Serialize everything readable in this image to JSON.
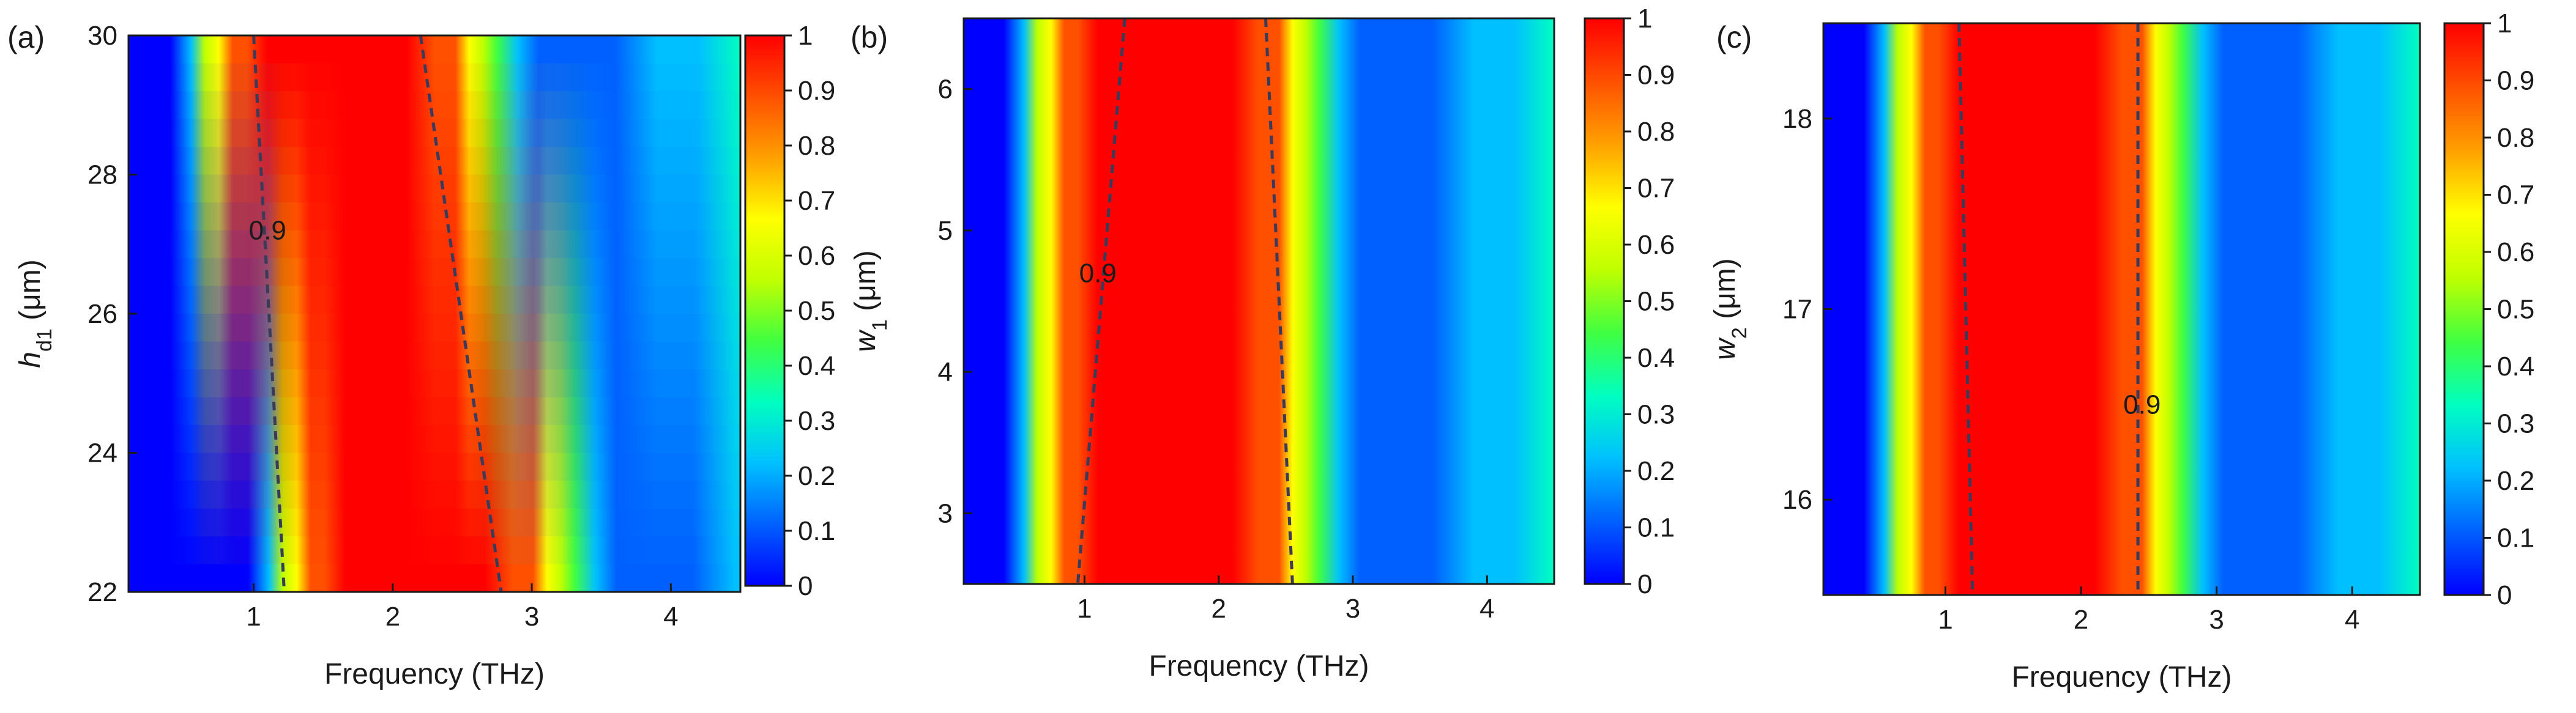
{
  "colors": {
    "colormap": [
      "#0000ff",
      "#0060ff",
      "#00c0ff",
      "#00ffc0",
      "#40ff40",
      "#c0ff00",
      "#ffff00",
      "#ffa000",
      "#ff5000",
      "#ff0000"
    ],
    "contour_line": "#3a3a5a",
    "axis": "#1a1a1a"
  },
  "chart_data": [
    {
      "type": "heatmap",
      "panel_label": "(a)",
      "xlabel": "Frequency (THz)",
      "ylabel_main": "h",
      "ylabel_sub": "d1",
      "ylabel_unit": " (μm)",
      "ylabel_italic": true,
      "xlim": [
        0.1,
        4.5
      ],
      "ylim": [
        22,
        30
      ],
      "xticks": [
        "1",
        "2",
        "3",
        "4"
      ],
      "xtick_values": [
        1,
        2,
        3,
        4
      ],
      "yticks": [
        "22",
        "24",
        "26",
        "28",
        "30"
      ],
      "ytick_values": [
        22,
        24,
        26,
        28,
        30
      ],
      "colorbar_ticks": [
        "0",
        "0.1",
        "0.2",
        "0.3",
        "0.4",
        "0.5",
        "0.6",
        "0.7",
        "0.8",
        "0.9",
        "1"
      ],
      "colorbar_values": [
        0,
        0.1,
        0.2,
        0.3,
        0.4,
        0.5,
        0.6,
        0.7,
        0.8,
        0.9,
        1
      ],
      "contour_label": "0.9",
      "contour_label_pos": [
        1.1,
        27.2
      ],
      "contour_left": [
        [
          1.0,
          30
        ],
        [
          1.22,
          22
        ]
      ],
      "contour_right": [
        [
          2.2,
          30
        ],
        [
          2.78,
          22
        ]
      ],
      "band_shift": [
        0,
        -0.56
      ]
    },
    {
      "type": "heatmap",
      "panel_label": "(b)",
      "xlabel": "Frequency (THz)",
      "ylabel_main": "w",
      "ylabel_sub": "1",
      "ylabel_unit": " (μm)",
      "ylabel_italic": true,
      "xlim": [
        0.1,
        4.5
      ],
      "ylim": [
        2.5,
        6.5
      ],
      "xticks": [
        "1",
        "2",
        "3",
        "4"
      ],
      "xtick_values": [
        1,
        2,
        3,
        4
      ],
      "yticks": [
        "3",
        "4",
        "5",
        "6"
      ],
      "ytick_values": [
        3,
        4,
        5,
        6
      ],
      "colorbar_ticks": [
        "0",
        "0.1",
        "0.2",
        "0.3",
        "0.4",
        "0.5",
        "0.6",
        "0.7",
        "0.8",
        "0.9",
        "1"
      ],
      "colorbar_values": [
        0,
        0.1,
        0.2,
        0.3,
        0.4,
        0.5,
        0.6,
        0.7,
        0.8,
        0.9,
        1
      ],
      "contour_label": "0.9",
      "contour_label_pos": [
        1.1,
        4.7
      ],
      "contour_left": [
        [
          1.3,
          6.5
        ],
        [
          0.95,
          2.5
        ]
      ],
      "contour_right": [
        [
          2.35,
          6.5
        ],
        [
          2.55,
          2.5
        ]
      ],
      "band_shift": [
        0,
        0
      ]
    },
    {
      "type": "heatmap",
      "panel_label": "(c)",
      "xlabel": "Frequency (THz)",
      "ylabel_main": "w",
      "ylabel_sub": "2",
      "ylabel_unit": " (μm)",
      "ylabel_italic": true,
      "xlim": [
        0.1,
        4.5
      ],
      "ylim": [
        15.5,
        18.5
      ],
      "xticks": [
        "1",
        "2",
        "3",
        "4"
      ],
      "xtick_values": [
        1,
        2,
        3,
        4
      ],
      "yticks": [
        "16",
        "17",
        "18"
      ],
      "ytick_values": [
        16,
        17,
        18
      ],
      "colorbar_ticks": [
        "0",
        "0.1",
        "0.2",
        "0.3",
        "0.4",
        "0.5",
        "0.6",
        "0.7",
        "0.8",
        "0.9",
        "1"
      ],
      "colorbar_values": [
        0,
        0.1,
        0.2,
        0.3,
        0.4,
        0.5,
        0.6,
        0.7,
        0.8,
        0.9,
        1
      ],
      "contour_label": "0.9",
      "contour_label_pos": [
        2.45,
        16.5
      ],
      "contour_left": [
        [
          1.1,
          18.5
        ],
        [
          1.2,
          15.5
        ]
      ],
      "contour_right": [
        [
          2.42,
          18.5
        ],
        [
          2.42,
          15.5
        ]
      ],
      "band_shift": [
        0,
        0
      ]
    }
  ]
}
